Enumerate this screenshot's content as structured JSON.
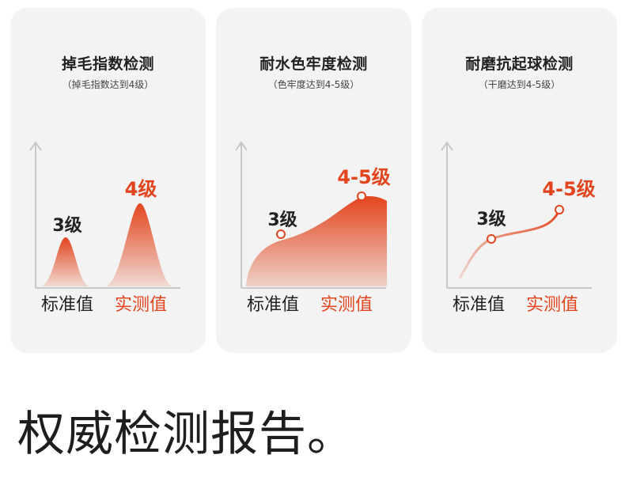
{
  "cards": [
    {
      "title": "掉毛指数检测",
      "subtitle": "（掉毛指数达到4级）",
      "standard_label": "3级",
      "actual_label": "4级",
      "legend_standard": "标准值",
      "legend_actual": "实测值"
    },
    {
      "title": "耐水色牢度检测",
      "subtitle": "（色牢度达到4-5级）",
      "standard_label": "3级",
      "actual_label": "4-5级",
      "legend_standard": "标准值",
      "legend_actual": "实测值"
    },
    {
      "title": "耐磨抗起球检测",
      "subtitle": "（干磨达到4-5级）",
      "standard_label": "3级",
      "actual_label": "4-5级",
      "legend_standard": "标准值",
      "legend_actual": "实测值"
    }
  ],
  "headline": "权威检测报告。",
  "colors": {
    "accent": "#e2451d",
    "card_bg": "#f3f3f3",
    "axis": "#c8c8c8",
    "text": "#222222"
  }
}
